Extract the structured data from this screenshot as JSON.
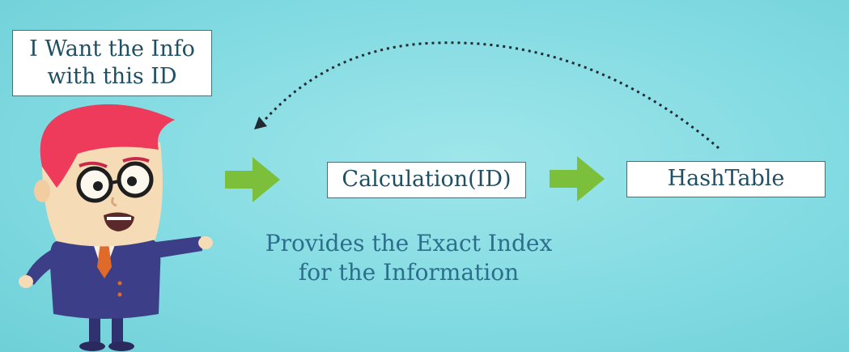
{
  "speech_bubble": {
    "line1": "I Want the Info",
    "line2": "with this ID"
  },
  "calculation_box": {
    "label": "Calculation(ID)"
  },
  "hashtable_box": {
    "label": "HashTable"
  },
  "caption": {
    "line1": "Provides the Exact Index",
    "line2": "for the Information"
  },
  "colors": {
    "background": "#86dce3",
    "arrow_green": "#7bbf3a",
    "box_border": "#4a6f7c",
    "text_dark": "#1f4f63",
    "caption_text": "#2c6f8c",
    "hair": "#ee3b5b",
    "suit": "#3c3f87"
  }
}
